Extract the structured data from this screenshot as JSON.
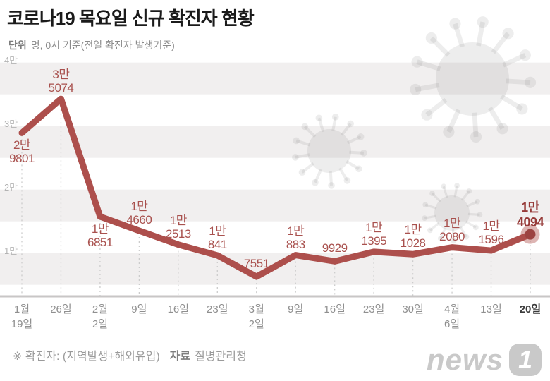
{
  "header": {
    "title": "코로나19 목요일 신규 확진자 현황",
    "subtitle_unit_label": "단위",
    "subtitle_rest": "명, 0시 기준(전일 확진자 발생기준)"
  },
  "footer": {
    "note": "※ 확진자: (지역발생+해외유입)",
    "source_label": "자료",
    "source_value": "질병관리청",
    "logo_word": "news",
    "logo_badge": "1"
  },
  "chart_data": {
    "type": "line",
    "title": "코로나19 목요일 신규 확진자 현황",
    "unit": "명",
    "x_tick_labels": [
      [
        "1월",
        "19일"
      ],
      [
        "26일"
      ],
      [
        "2월",
        "2일"
      ],
      [
        "9일"
      ],
      [
        "16일"
      ],
      [
        "23일"
      ],
      [
        "3월",
        "2일"
      ],
      [
        "9일"
      ],
      [
        "16일"
      ],
      [
        "23일"
      ],
      [
        "30일"
      ],
      [
        "4월",
        "6일"
      ],
      [
        "13일"
      ],
      [
        "20일"
      ]
    ],
    "values": [
      29801,
      35074,
      16851,
      14660,
      12513,
      10841,
      7551,
      10883,
      9929,
      11395,
      11028,
      12080,
      11596,
      14094
    ],
    "point_labels": [
      [
        "2만",
        "9801"
      ],
      [
        "3만",
        "5074"
      ],
      [
        "1만",
        "6851"
      ],
      [
        "1만",
        "4660"
      ],
      [
        "1만",
        "2513"
      ],
      [
        "1만",
        "841"
      ],
      [
        "7551"
      ],
      [
        "1만",
        "883"
      ],
      [
        "9929"
      ],
      [
        "1만",
        "1395"
      ],
      [
        "1만",
        "1028"
      ],
      [
        "1만",
        "2080"
      ],
      [
        "1만",
        "1596"
      ],
      [
        "1만",
        "4094"
      ]
    ],
    "point_label_side": [
      "below",
      "above",
      "below",
      "above",
      "above",
      "above",
      "above",
      "above",
      "above",
      "above",
      "above",
      "above",
      "above",
      "above"
    ],
    "y_ticks": [
      {
        "label": "4만",
        "value": 40000
      },
      {
        "label": "3만",
        "value": 30000
      },
      {
        "label": "2만",
        "value": 20000
      },
      {
        "label": "1만",
        "value": 10000
      }
    ],
    "ylim": [
      3200,
      40000
    ],
    "highlight_last_point": true,
    "legend": "none",
    "grid": "horizontal-bands + dashed vertical drop lines",
    "colors": {
      "line": "#ad4f4c",
      "point_label": "#a9514e",
      "final_label": "#963a38",
      "marker_dot": "#9c4341",
      "marker_halo": "rgba(173,79,75,0.42)",
      "band_gray": "#f1efef",
      "axis_baseline": "#c8c6c6",
      "dashed_line": "#cccccc",
      "y_tick_text": "#b3b3b3",
      "x_tick_text": "#8f8f8f",
      "x_tick_final": "#3a3a3a",
      "virus_watermark": "rgba(125,125,125,0.14)"
    }
  }
}
